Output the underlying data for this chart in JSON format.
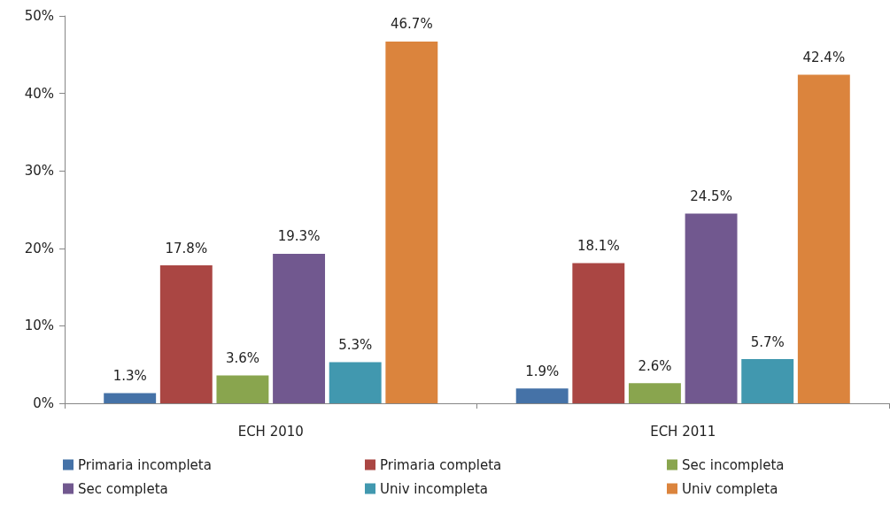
{
  "chart_data": {
    "type": "bar",
    "categories": [
      "ECH 2010",
      "ECH 2011"
    ],
    "series": [
      {
        "name": "Primaria incompleta",
        "color": "#4572a7",
        "values": [
          1.3,
          1.9
        ],
        "value_labels": [
          "1.3%",
          "1.9%"
        ]
      },
      {
        "name": "Primaria completa",
        "color": "#aa4643",
        "values": [
          17.8,
          18.1
        ],
        "value_labels": [
          "17.8%",
          "18.1%"
        ]
      },
      {
        "name": "Sec incompleta",
        "color": "#89a54e",
        "values": [
          3.6,
          2.6
        ],
        "value_labels": [
          "3.6%",
          "2.6%"
        ]
      },
      {
        "name": "Sec completa",
        "color": "#71588f",
        "values": [
          19.3,
          24.5
        ],
        "value_labels": [
          "19.3%",
          "24.5%"
        ]
      },
      {
        "name": "Univ incompleta",
        "color": "#4198af",
        "values": [
          5.3,
          5.7
        ],
        "value_labels": [
          "5.3%",
          "5.7%"
        ]
      },
      {
        "name": "Univ completa",
        "color": "#db843d",
        "values": [
          46.7,
          42.4
        ],
        "value_labels": [
          "46.7%",
          "42.4%"
        ]
      }
    ],
    "ylim": [
      0,
      50
    ],
    "yticks": [
      {
        "value": 0,
        "label": "0%"
      },
      {
        "value": 10,
        "label": "10%"
      },
      {
        "value": 20,
        "label": "20%"
      },
      {
        "value": 30,
        "label": "30%"
      },
      {
        "value": 40,
        "label": "40%"
      },
      {
        "value": 50,
        "label": "50%"
      }
    ],
    "grid": false,
    "legend": "bottom"
  }
}
